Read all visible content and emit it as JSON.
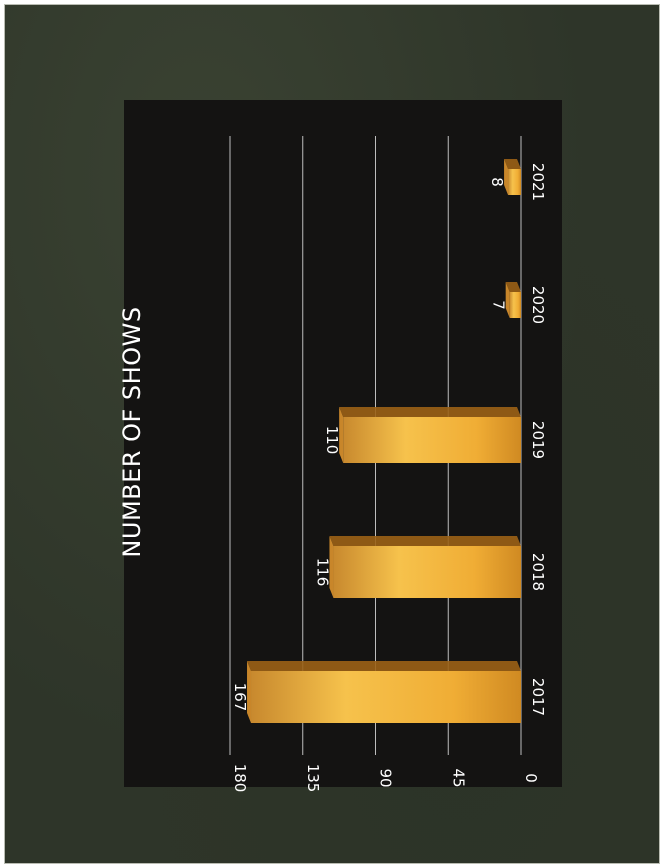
{
  "chart_data": {
    "type": "bar",
    "title": "NUMBER OF SHOWS",
    "categories": [
      "2017",
      "2018",
      "2019",
      "2020",
      "2021"
    ],
    "values": [
      167,
      116,
      110,
      7,
      8
    ],
    "data_labels": [
      "167",
      "116",
      "110",
      "7",
      "8"
    ],
    "ylim": [
      0,
      180
    ],
    "yticks": [
      0,
      45,
      90,
      135,
      180
    ],
    "ytick_labels": [
      "0",
      "45",
      "90",
      "135",
      "180"
    ],
    "xlabel": "",
    "ylabel": "",
    "grid": true,
    "orientation": "rotated-90-clockwise",
    "colors": {
      "bar": "#f2b33a",
      "bar_top": "#c8862a",
      "bar_side": "#9b6216",
      "background": "#141312",
      "grid": "#bdbdbd",
      "text": "#ffffff"
    }
  }
}
